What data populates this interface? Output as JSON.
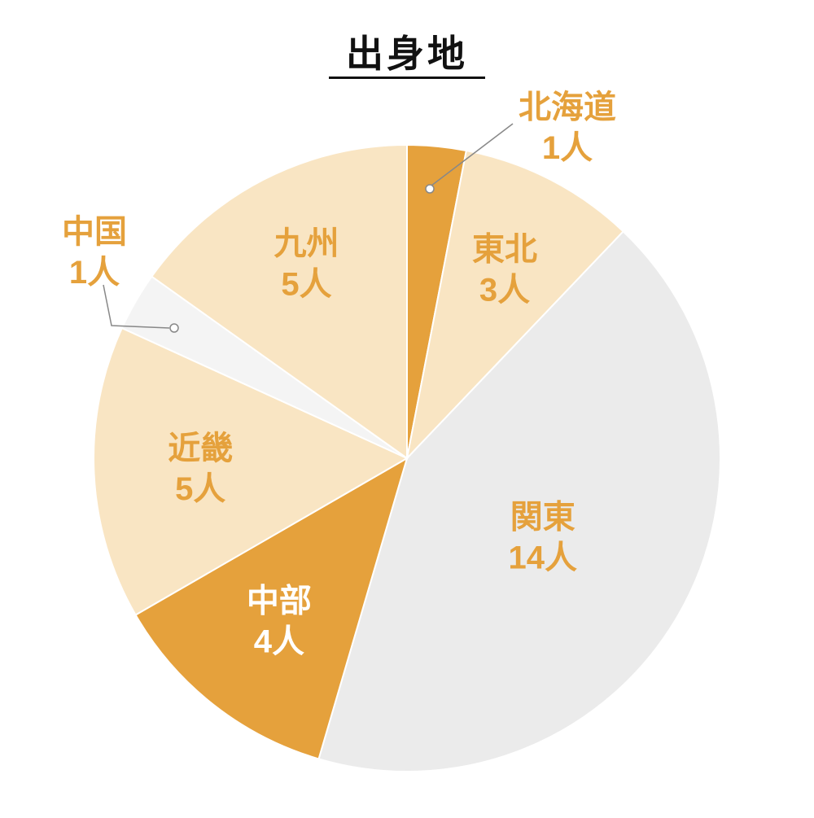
{
  "title": "出身地",
  "chart_data": {
    "type": "pie",
    "title": "出身地",
    "unit": "人",
    "total": 33,
    "start_angle_deg": 0,
    "direction": "clockwise",
    "legend": "none",
    "colors": {
      "accent_orange": "#E5A13C",
      "light_cream": "#F9E5C3",
      "light_gray": "#EBEBEB",
      "pale_gray": "#F4F4F4",
      "white_text": "#FFFFFF",
      "leader_line": "#888888"
    },
    "segments": [
      {
        "label": "北海道",
        "value": 1,
        "value_label": "1人",
        "color": "#E5A13C",
        "text_color": "#E5A13C",
        "label_pos": "outside"
      },
      {
        "label": "東北",
        "value": 3,
        "value_label": "3人",
        "color": "#F9E5C3",
        "text_color": "#E5A13C",
        "label_pos": "inside"
      },
      {
        "label": "関東",
        "value": 14,
        "value_label": "14人",
        "color": "#EBEBEB",
        "text_color": "#E5A13C",
        "label_pos": "inside"
      },
      {
        "label": "中部",
        "value": 4,
        "value_label": "4人",
        "color": "#E5A13C",
        "text_color": "#FFFFFF",
        "label_pos": "inside"
      },
      {
        "label": "近畿",
        "value": 5,
        "value_label": "5人",
        "color": "#F9E5C3",
        "text_color": "#E5A13C",
        "label_pos": "inside"
      },
      {
        "label": "中国",
        "value": 1,
        "value_label": "1人",
        "color": "#F4F4F4",
        "text_color": "#E5A13C",
        "label_pos": "outside"
      },
      {
        "label": "九州",
        "value": 5,
        "value_label": "5人",
        "color": "#F9E5C3",
        "text_color": "#E5A13C",
        "label_pos": "inside"
      }
    ]
  }
}
